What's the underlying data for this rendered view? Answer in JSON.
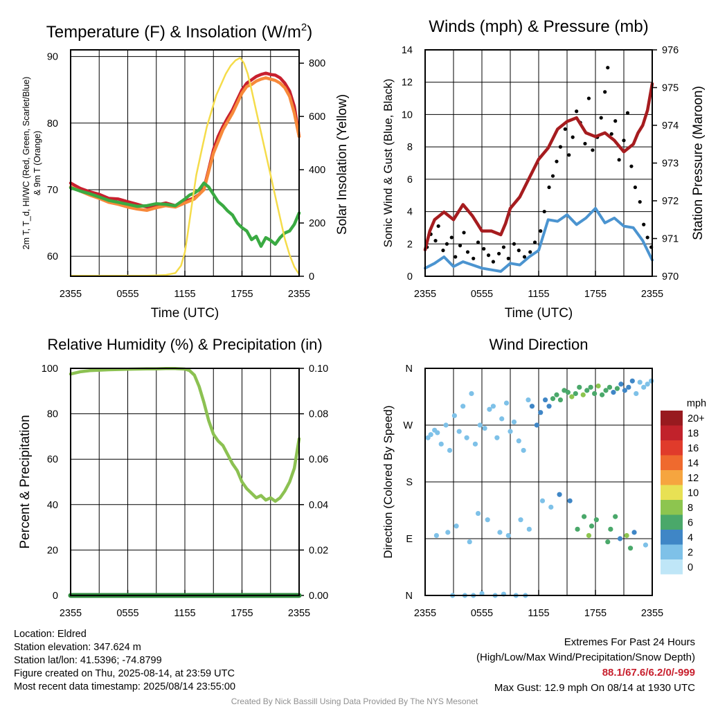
{
  "chart_data": [
    {
      "id": "temp",
      "type": "line",
      "title": "Temperature (F) & Insolation (W/m",
      "title_sup": "2",
      "title_end": ")",
      "xlabel": "Time (UTC)",
      "ylabel_lines": [
        "2m T, T_d, HI/WC (Red, Green, Scarlet/Blue)",
        "& 9m T (Orange)"
      ],
      "y2label": "Solar Insolation (Yellow)",
      "x_ticks": [
        "2355",
        "0555",
        "1155",
        "1755",
        "2355"
      ],
      "x_range_hours": [
        0,
        24
      ],
      "ylim": [
        57,
        91
      ],
      "yticks": [
        60,
        70,
        80,
        90
      ],
      "y2lim": [
        0,
        850
      ],
      "y2ticks": [
        0,
        200,
        400,
        600,
        800
      ],
      "series": [
        {
          "name": "2m T",
          "color": "#c8202e",
          "x": [
            0,
            0.5,
            1,
            2,
            3,
            4,
            5,
            6,
            7,
            8,
            9,
            10,
            11,
            12,
            12.5,
            13,
            13.5,
            14,
            14.5,
            15,
            15.5,
            16,
            16.5,
            17,
            17.5,
            18,
            18.5,
            19,
            19.5,
            20,
            20.5,
            21,
            21.5,
            22,
            22.5,
            23,
            23.5,
            24
          ],
          "y": [
            71,
            70.6,
            70.2,
            69.7,
            69.3,
            68.7,
            68.6,
            68.2,
            67.8,
            67.4,
            67.7,
            68,
            67.6,
            68.3,
            68.5,
            68.8,
            69.3,
            70.2,
            73,
            76,
            78,
            79.5,
            80.8,
            82,
            83.5,
            85,
            86,
            86.5,
            87,
            87.3,
            87.5,
            87.3,
            87.2,
            86.8,
            86,
            84.8,
            82.5,
            78
          ]
        },
        {
          "name": "9m T",
          "color": "#f7893a",
          "x": [
            0,
            1,
            2,
            3,
            4,
            5,
            6,
            7,
            8,
            9,
            10,
            11,
            12,
            13,
            14,
            15,
            16,
            17,
            18,
            18.5,
            19,
            19.5,
            20,
            20.5,
            21,
            21.5,
            22,
            22.5,
            23,
            23.5,
            24
          ],
          "y": [
            70.4,
            69.8,
            69.2,
            68.7,
            68.1,
            67.8,
            67.4,
            67.1,
            66.9,
            67.3,
            67.6,
            67.4,
            68,
            68.6,
            70,
            75.5,
            79,
            81.5,
            84.5,
            85.5,
            85.8,
            86.3,
            86.6,
            86.8,
            86.6,
            86.4,
            86,
            85.3,
            84,
            81.5,
            78
          ]
        },
        {
          "name": "T_d",
          "color": "#3aaa42",
          "x": [
            0,
            1,
            2,
            3,
            4,
            5,
            6,
            7,
            8,
            9,
            10,
            11,
            12,
            12.5,
            13,
            13.5,
            14,
            14.5,
            15,
            15.5,
            16,
            16.5,
            17,
            17.5,
            18,
            18.5,
            19,
            19.5,
            20,
            20.5,
            21,
            21.5,
            22,
            22.5,
            23,
            23.5,
            24
          ],
          "y": [
            70.3,
            69.8,
            69.4,
            68.9,
            68.4,
            68.1,
            67.8,
            67.5,
            67.6,
            67.9,
            67.8,
            67.6,
            68.6,
            69.2,
            69.5,
            70,
            71,
            70.4,
            69.3,
            68.2,
            67.6,
            66.8,
            66.2,
            65,
            64.3,
            63.8,
            62.5,
            63,
            61.5,
            62.8,
            62.4,
            61.8,
            62.8,
            63.5,
            63.8,
            64.8,
            66.5
          ]
        },
        {
          "name": "Solar Insolation",
          "color": "#f5dc4a",
          "axis": "y2",
          "x": [
            0,
            2,
            4,
            6,
            8,
            9,
            10,
            11,
            11.6,
            12,
            12.3,
            12.7,
            13.2,
            13.8,
            14.3,
            14.8,
            15.3,
            15.8,
            16.3,
            16.8,
            17.3,
            17.8,
            18.2,
            18.6,
            19,
            19.5,
            20,
            20.5,
            21,
            21.5,
            22,
            22.5,
            23,
            23.5,
            24
          ],
          "y": [
            2,
            2,
            2,
            2,
            2,
            3,
            5,
            12,
            40,
            90,
            160,
            260,
            380,
            480,
            560,
            620,
            680,
            720,
            760,
            790,
            810,
            820,
            800,
            760,
            700,
            620,
            540,
            460,
            380,
            300,
            220,
            140,
            80,
            35,
            8
          ]
        }
      ]
    },
    {
      "id": "wind",
      "type": "line",
      "title": "Winds (mph) & Pressure (mb)",
      "xlabel": "Time (UTC)",
      "ylabel": "Sonic Wind & Gust (Blue, Black)",
      "y2label": "Station Pressure (Maroon)",
      "x_ticks": [
        "2355",
        "0555",
        "1155",
        "1755",
        "2355"
      ],
      "x_range_hours": [
        0,
        24
      ],
      "ylim": [
        0,
        14
      ],
      "yticks": [
        0,
        2,
        4,
        6,
        8,
        10,
        12,
        14
      ],
      "y2lim": [
        970,
        976
      ],
      "y2ticks": [
        970,
        971,
        972,
        973,
        974,
        975,
        976
      ],
      "series": [
        {
          "name": "Sonic Wind",
          "color": "#4b94d0",
          "x": [
            0,
            1,
            2,
            3,
            4,
            5,
            6,
            7,
            8,
            9,
            10,
            11,
            12,
            13,
            14,
            15,
            16,
            17,
            18,
            19,
            20,
            21,
            22,
            23,
            24
          ],
          "y": [
            0.5,
            0.8,
            1.2,
            0.6,
            0.9,
            0.7,
            0.5,
            0.4,
            0.3,
            0.8,
            0.7,
            1.2,
            1.6,
            3.5,
            3.4,
            3.8,
            3.2,
            3.6,
            4.2,
            3.3,
            3.6,
            3.1,
            3.0,
            2.2,
            1.0
          ]
        },
        {
          "name": "Station Pressure",
          "color": "#a61c1f",
          "axis": "y2",
          "x": [
            0,
            0.5,
            1,
            2,
            3,
            4,
            5,
            5.5,
            6,
            7,
            8,
            8.5,
            9,
            10,
            11,
            12,
            13,
            14,
            15,
            16,
            17,
            18,
            19,
            20,
            21,
            22,
            22.5,
            23,
            23.5,
            24
          ],
          "y": [
            970.7,
            971.2,
            971.5,
            971.7,
            971.5,
            971.9,
            971.6,
            971.4,
            971.2,
            971.2,
            971.1,
            971.4,
            971.8,
            972.1,
            972.6,
            973.1,
            973.4,
            973.9,
            974.1,
            974.2,
            973.8,
            973.7,
            973.8,
            973.6,
            973.3,
            973.5,
            973.8,
            974.0,
            974.4,
            975.1
          ]
        }
      ],
      "gust_points": {
        "name": "Gust",
        "color": "#000000",
        "x": [
          0.2,
          0.6,
          1.1,
          1.4,
          1.9,
          2.3,
          2.8,
          3.2,
          3.7,
          4.1,
          4.5,
          5.1,
          5.6,
          6.2,
          6.7,
          7.2,
          7.8,
          8.3,
          8.8,
          9.4,
          9.9,
          10.5,
          11.1,
          11.6,
          12.2,
          12.6,
          13.1,
          13.5,
          13.9,
          14.3,
          14.8,
          15.2,
          15.6,
          16.0,
          16.4,
          16.9,
          17.3,
          17.7,
          18.2,
          18.6,
          19.0,
          19.3,
          19.7,
          20.1,
          20.5,
          21.0,
          21.4,
          21.8,
          22.2,
          22.7,
          23.1,
          23.5,
          23.9
        ],
        "y": [
          1.8,
          2.6,
          2.2,
          3.1,
          1.6,
          2.0,
          2.4,
          1.2,
          1.9,
          2.7,
          1.5,
          1.1,
          2.1,
          1.7,
          1.3,
          0.9,
          1.4,
          1.8,
          1.1,
          2.0,
          1.6,
          1.2,
          1.5,
          2.1,
          2.8,
          4.0,
          5.5,
          6.2,
          7.1,
          8.0,
          9.1,
          7.5,
          8.6,
          10.2,
          9.5,
          8.2,
          11.0,
          7.8,
          8.6,
          9.8,
          11.4,
          12.9,
          8.8,
          9.6,
          7.2,
          8.4,
          10.1,
          6.8,
          5.5,
          4.6,
          3.2,
          2.4,
          1.8
        ]
      }
    },
    {
      "id": "rh",
      "type": "line",
      "title": "Relative Humidity (%) & Precipitation (in)",
      "ylabel": "Percent & Precipitation",
      "x_ticks": [
        "2355",
        "0555",
        "1155",
        "1755",
        "2355"
      ],
      "x_range_hours": [
        0,
        24
      ],
      "ylim": [
        0,
        100
      ],
      "yticks": [
        0,
        20,
        40,
        60,
        80,
        100
      ],
      "y2lim": [
        0,
        0.1
      ],
      "y2ticks": [
        "0.00",
        "0.02",
        "0.04",
        "0.06",
        "0.08",
        "0.10"
      ],
      "series": [
        {
          "name": "Relative Humidity",
          "color": "#8cc152",
          "x": [
            0,
            0.5,
            1,
            2,
            3,
            4,
            5,
            6,
            7,
            8,
            9,
            10,
            11,
            12,
            12.5,
            13,
            13.5,
            14,
            14.5,
            15,
            15.5,
            16,
            16.5,
            17,
            17.5,
            18,
            18.5,
            19,
            19.5,
            20,
            20.5,
            21,
            21.5,
            22,
            22.5,
            23,
            23.5,
            24
          ],
          "y": [
            97.5,
            98,
            98.5,
            99,
            99.2,
            99.4,
            99.5,
            99.6,
            99.7,
            99.8,
            99.8,
            99.9,
            99.9,
            99.7,
            99,
            97,
            92,
            85,
            77,
            71,
            68,
            66,
            62,
            58,
            55,
            50,
            47,
            45,
            43,
            44,
            42,
            43,
            41.5,
            43,
            46,
            50,
            56,
            69
          ]
        },
        {
          "name": "Precipitation",
          "color": "#2f8b3e",
          "axis": "y2",
          "x": [
            0,
            24
          ],
          "y": [
            0,
            0
          ]
        }
      ]
    },
    {
      "id": "dir",
      "type": "scatter",
      "title": "Wind Direction",
      "ylabel": "Direction (Colored By Speed)",
      "x_ticks": [
        "2355",
        "0555",
        "1155",
        "1755",
        "2355"
      ],
      "x_range_hours": [
        0,
        24
      ],
      "y_ticks": [
        "N",
        "E",
        "S",
        "W",
        "N"
      ],
      "ylim": [
        0,
        360
      ],
      "legend_title": "mph",
      "legend_labels": [
        "0",
        "2",
        "4",
        "6",
        "8",
        "10",
        "12",
        "14",
        "16",
        "18",
        "20+"
      ],
      "legend_colors": [
        "#bfe6f7",
        "#7ec1e8",
        "#3f86c6",
        "#4aa86a",
        "#8dc54f",
        "#e8e154",
        "#f6a53f",
        "#ef6a2e",
        "#e03b2b",
        "#c1222b",
        "#981a1f"
      ],
      "points": {
        "x": [
          0.3,
          0.6,
          1.0,
          1.3,
          1.7,
          2.2,
          2.6,
          3.1,
          3.6,
          4.0,
          4.4,
          4.9,
          5.3,
          5.8,
          6.3,
          6.8,
          7.2,
          7.6,
          8.1,
          8.6,
          9.0,
          9.4,
          9.9,
          10.4,
          10.9,
          11.3,
          11.8,
          12.2,
          12.7,
          13.1,
          13.5,
          13.9,
          14.3,
          14.7,
          15.1,
          15.5,
          15.9,
          16.3,
          16.7,
          17.1,
          17.5,
          17.9,
          18.3,
          18.7,
          19.1,
          19.5,
          19.9,
          20.3,
          20.7,
          21.1,
          21.5,
          21.9,
          22.3,
          22.7,
          23.1,
          23.5,
          23.9,
          1.2,
          2.4,
          3.3,
          4.7,
          5.6,
          6.6,
          7.9,
          8.8,
          10.1,
          11.0,
          12.4,
          13.3,
          14.2,
          15.3,
          16.1,
          17.3,
          18.1,
          19.3,
          20.1,
          21.3,
          22.1,
          23.3,
          2.9,
          4.2,
          5.1,
          6.0,
          7.4,
          8.3,
          9.6,
          10.6,
          16.8,
          17.6,
          19.6,
          20.6,
          21.7
        ],
        "y": [
          250,
          255,
          262,
          258,
          240,
          270,
          230,
          285,
          260,
          300,
          250,
          320,
          240,
          270,
          265,
          295,
          300,
          250,
          280,
          305,
          260,
          275,
          245,
          230,
          310,
          300,
          270,
          290,
          310,
          300,
          312,
          318,
          310,
          325,
          322,
          315,
          320,
          330,
          318,
          325,
          330,
          320,
          332,
          318,
          325,
          330,
          322,
          328,
          335,
          325,
          330,
          340,
          320,
          338,
          330,
          335,
          340,
          95,
          100,
          110,
          85,
          130,
          120,
          100,
          95,
          120,
          105,
          150,
          140,
          160,
          150,
          105,
          95,
          120,
          85,
          125,
          95,
          100,
          80,
          0,
          0,
          0,
          3,
          0,
          2,
          0,
          0,
          125,
          110,
          105,
          90,
          75
        ],
        "s": [
          1,
          1,
          1,
          1,
          1,
          1,
          1,
          1,
          1,
          1,
          1,
          1,
          1,
          1,
          1,
          1,
          1,
          1,
          1,
          1,
          1,
          1,
          1,
          1,
          1,
          2,
          2,
          2,
          2,
          2,
          3,
          3,
          3,
          3,
          3,
          4,
          3,
          3,
          4,
          3,
          3,
          3,
          4,
          3,
          3,
          3,
          2,
          3,
          2,
          2,
          2,
          2,
          1,
          1,
          1,
          1,
          1,
          1,
          1,
          1,
          1,
          1,
          1,
          1,
          1,
          1,
          1,
          1,
          1,
          2,
          2,
          3,
          4,
          3,
          3,
          3,
          4,
          2,
          1,
          1,
          1,
          1,
          1,
          1,
          1,
          1,
          1,
          3,
          3,
          3,
          2,
          3
        ]
      }
    }
  ],
  "info": {
    "location": "Location: Eldred",
    "elevation": "Station elevation: 347.624 m",
    "latlon": "Station lat/lon: 41.5396; -74.8799",
    "created": "Figure created on Thu, 2025-08-14, at 23:59 UTC",
    "recent": "Most recent data timestamp: 2025/08/14 23:55:00"
  },
  "extremes": {
    "title": "Extremes For Past 24 Hours",
    "subtitle": "(High/Low/Max Wind/Precipitation/Snow Depth)",
    "values": "88.1/67.6/6.2/0/-999",
    "max_gust": "Max Gust: 12.9 mph On 08/14 at 1930 UTC"
  },
  "credit": "Created By Nick Bassill Using Data Provided By The NYS Mesonet"
}
